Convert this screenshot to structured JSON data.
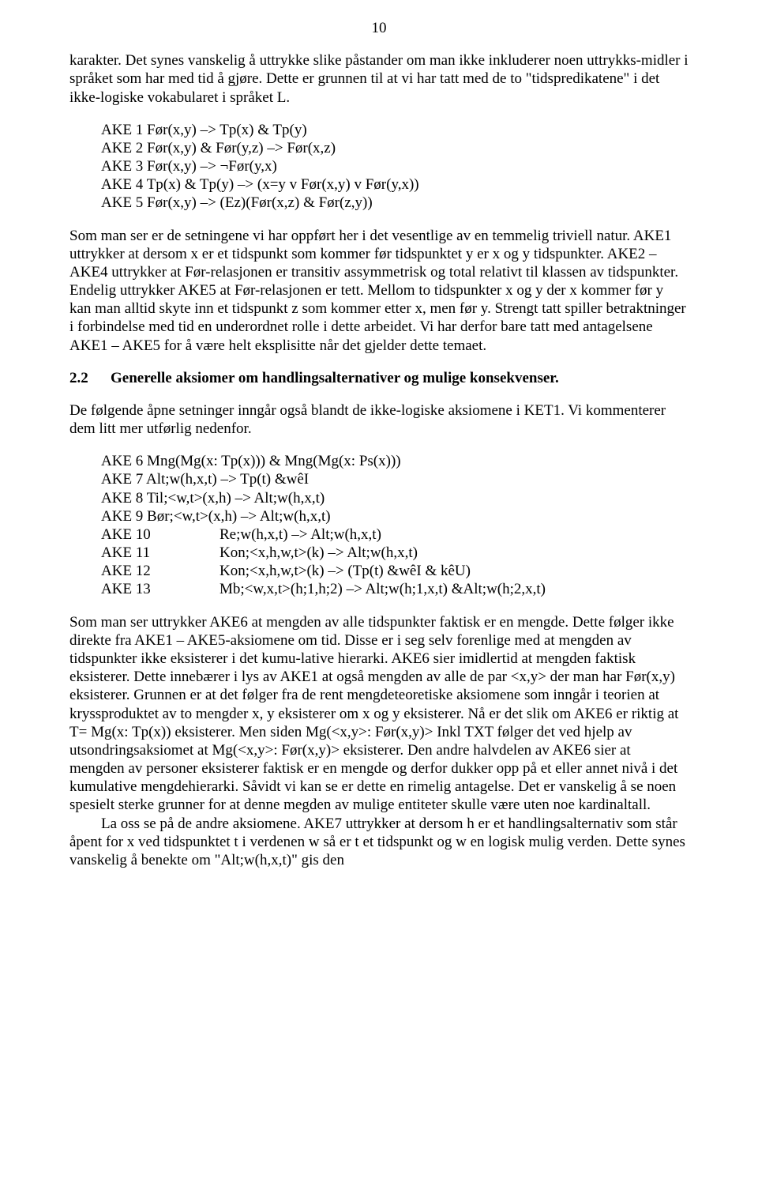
{
  "page_number": "10",
  "p1": "karakter.  Det synes vanskelig å uttrykke slike påstander om man ikke inkluderer noen uttrykks-midler i språket som har med tid å gjøre.  Dette er grunnen til at vi har tatt med de to \"tidspredikatene\" i det ikke-logiske vokabularet i språket L.",
  "axioms1": {
    "l1": "AKE 1 Før(x,y) –> Tp(x) & Tp(y)",
    "l2": "AKE 2 Før(x,y) & Før(y,z) –> Før(x,z)",
    "l3": "AKE 3 Før(x,y) –> ¬Før(y,x)",
    "l4": "AKE 4 Tp(x) & Tp(y) –> (x=y v Før(x,y) v Før(y,x))",
    "l5": "AKE 5 Før(x,y) –> (Ez)(Før(x,z) & Før(z,y))"
  },
  "p2": "Som man ser er de setningene vi har oppført her i det vesentlige av en temmelig triviell natur.  AKE1 uttrykker at dersom x er et tidspunkt som kommer før tidspunktet y er x og y tidspunkter.  AKE2 – AKE4 uttrykker at Før-relasjonen er transitiv assymmetrisk og total relativt til klassen av tidspunkter.  Endelig uttrykker AKE5 at Før-relasjonen er tett.  Mellom to tidspunkter x og y der x kommer før y kan man alltid skyte inn et tidspunkt z som kommer etter x, men før y.  Strengt tatt spiller betraktninger i forbindelse med tid en underordnet rolle i dette arbeidet.  Vi har derfor bare tatt med antagelsene AKE1 – AKE5 for å være helt eksplisitte når det gjelder dette temaet.",
  "section": {
    "num": "2.2",
    "title": "Generelle aksiomer om handlingsalternativer og mulige konsekvenser."
  },
  "p3": "De følgende åpne setninger inngår også blandt de ikke-logiske aksiomene i KET1. Vi kommenterer dem litt mer utførlig nedenfor.",
  "axioms2": {
    "l1": "AKE 6 Mng(Mg(x: Tp(x))) & Mng(Mg(x: Ps(x)))",
    "l2": "AKE 7 Alt;w(h,x,t) –> Tp(t) &wêI",
    "l3": "AKE 8 Til;<w,t>(x,h) –> Alt;w(h,x,t)",
    "l4": "AKE 9 Bør;<w,t>(x,h) –> Alt;w(h,x,t)",
    "r1a": "AKE 10",
    "r1b": "Re;w(h,x,t) –> Alt;w(h,x,t)",
    "r2a": "AKE 11",
    "r2b": "Kon;<x,h,w,t>(k) –> Alt;w(h,x,t)",
    "r3a": "AKE 12",
    "r3b": "Kon;<x,h,w,t>(k) –> (Tp(t) &wêI & kêU)",
    "r4a": "AKE 13",
    "r4b": "Mb;<w,x,t>(h;1,h;2)  –>  Alt;w(h;1,x,t) &Alt;w(h;2,x,t)"
  },
  "p4": "Som man ser uttrykker AKE6  at mengden av alle tidspunkter faktisk er en mengde.  Dette følger ikke direkte fra AKE1 – AKE5-aksiomene om tid.  Disse er i seg selv forenlige med at mengden av tidspunkter ikke eksisterer i det kumu-lative hierarki. AKE6 sier imidlertid at mengden faktisk eksisterer.  Dette innebærer i lys av AKE1 at også mengden av alle de par <x,y> der man har Før(x,y)  eksisterer.  Grunnen er at det følger fra de rent mengdeteoretiske aksiomene som inngår i teorien at kryssproduktet av to mengder x, y eksisterer om x og y eksisterer.  Nå er det slik om AKE6 er riktig at T= Mg(x: Tp(x)) eksisterer.  Men siden Mg(<x,y>: Før(x,y)> Inkl TXT følger det ved hjelp av utsondringsaksiomet at  Mg(<x,y>: Før(x,y)> eksisterer.  Den andre halvdelen av AKE6 sier at mengden av personer eksisterer faktisk er en mengde og derfor dukker opp på et eller annet nivå i det kumulative mengdehierarki.  Såvidt vi kan se er dette en rimelig antagelse.  Det er vanskelig å se noen spesielt sterke grunner for at denne megden av mulige entiteter skulle være uten noe kardinaltall.",
  "p5": "La oss se på de andre aksiomene.  AKE7 uttrykker at dersom h er et handlingsalternativ som står åpent for x ved tidspunktet t i verdenen w så er t et tidspunkt og w en logisk mulig verden.  Dette synes vanskelig å benekte om \"Alt;w(h,x,t)\" gis den"
}
